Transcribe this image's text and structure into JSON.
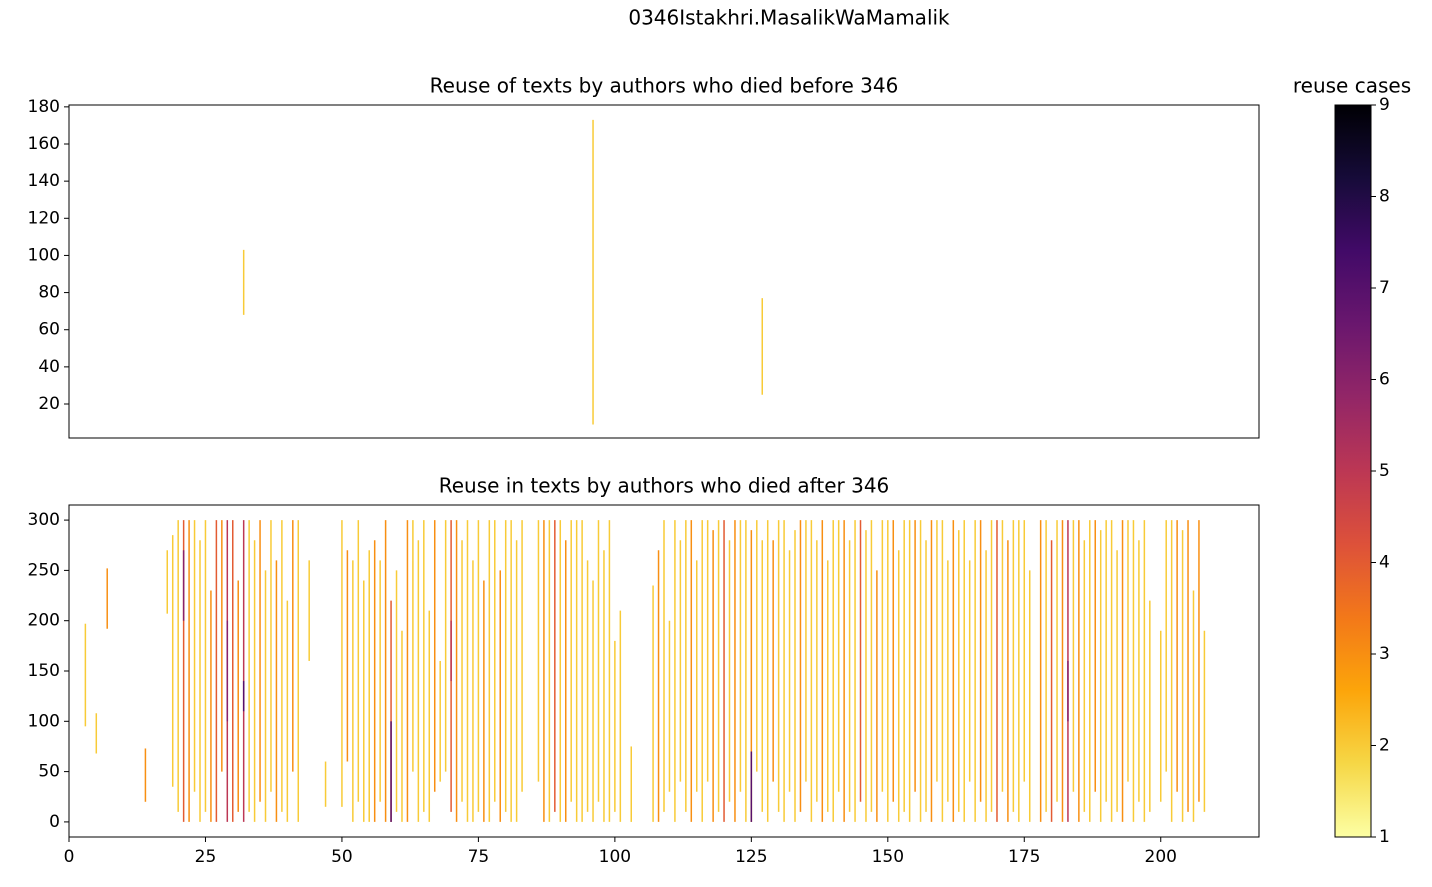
{
  "title": "0346Istakhri.MasalikWaMamalik",
  "chart_data": [
    {
      "type": "vlines",
      "title": "Reuse of texts by authors who died before 346",
      "x": [
        32,
        96,
        127
      ],
      "ymin": [
        68,
        9,
        25
      ],
      "ymax": [
        103,
        173,
        77
      ],
      "cases": [
        2,
        2,
        2
      ],
      "xlim": [
        0,
        218
      ],
      "ylim": [
        1.7,
        181
      ],
      "yticks": [
        20,
        40,
        60,
        80,
        100,
        120,
        140,
        160,
        180
      ]
    },
    {
      "type": "vlines",
      "title": "Reuse in texts by authors who died after 346",
      "x": [
        3,
        5,
        7,
        14,
        18,
        19,
        20,
        21,
        22,
        23,
        24,
        25,
        26,
        27,
        28,
        29,
        30,
        31,
        32,
        33,
        34,
        35,
        36,
        37,
        38,
        39,
        40,
        41,
        42,
        44,
        47,
        50,
        51,
        52,
        53,
        54,
        55,
        56,
        57,
        58,
        59,
        60,
        61,
        62,
        63,
        64,
        65,
        66,
        67,
        68,
        69,
        70,
        71,
        72,
        73,
        74,
        75,
        76,
        77,
        78,
        79,
        80,
        81,
        82,
        83,
        86,
        87,
        88,
        89,
        90,
        91,
        92,
        93,
        94,
        95,
        96,
        97,
        98,
        99,
        100,
        101,
        103,
        107,
        108,
        109,
        110,
        111,
        112,
        113,
        114,
        115,
        116,
        117,
        118,
        119,
        120,
        121,
        122,
        123,
        124,
        125,
        126,
        127,
        128,
        129,
        130,
        131,
        132,
        133,
        134,
        135,
        136,
        137,
        138,
        139,
        140,
        141,
        142,
        143,
        144,
        145,
        146,
        147,
        148,
        149,
        150,
        151,
        152,
        153,
        154,
        155,
        156,
        157,
        158,
        159,
        160,
        161,
        162,
        163,
        164,
        165,
        166,
        167,
        168,
        169,
        170,
        171,
        172,
        173,
        174,
        175,
        176,
        178,
        179,
        180,
        181,
        182,
        183,
        184,
        185,
        186,
        187,
        188,
        189,
        190,
        191,
        192,
        193,
        194,
        195,
        196,
        197,
        198,
        200,
        201,
        202,
        203,
        204,
        205,
        206,
        207,
        208,
        29,
        32,
        59,
        125,
        183,
        21,
        70
      ],
      "ymin": [
        95,
        68,
        192,
        20,
        207,
        35,
        10,
        0,
        0,
        30,
        0,
        10,
        0,
        0,
        50,
        0,
        0,
        10,
        0,
        10,
        0,
        20,
        0,
        30,
        0,
        10,
        0,
        50,
        0,
        160,
        15,
        15,
        60,
        0,
        20,
        0,
        0,
        0,
        20,
        0,
        0,
        10,
        0,
        0,
        50,
        0,
        10,
        0,
        30,
        40,
        50,
        10,
        0,
        20,
        0,
        0,
        10,
        0,
        0,
        20,
        0,
        10,
        0,
        0,
        30,
        40,
        0,
        0,
        10,
        0,
        0,
        20,
        0,
        0,
        10,
        0,
        20,
        0,
        0,
        10,
        0,
        0,
        0,
        0,
        10,
        30,
        0,
        40,
        10,
        0,
        30,
        0,
        40,
        0,
        10,
        0,
        20,
        0,
        30,
        0,
        0,
        50,
        10,
        0,
        40,
        10,
        0,
        30,
        0,
        10,
        40,
        0,
        20,
        0,
        10,
        0,
        30,
        0,
        10,
        0,
        20,
        0,
        10,
        0,
        30,
        0,
        20,
        0,
        10,
        0,
        30,
        0,
        10,
        0,
        40,
        0,
        20,
        0,
        10,
        0,
        40,
        0,
        20,
        0,
        10,
        0,
        30,
        0,
        10,
        0,
        40,
        0,
        0,
        10,
        0,
        20,
        0,
        0,
        30,
        0,
        10,
        0,
        30,
        0,
        20,
        0,
        10,
        0,
        40,
        0,
        20,
        0,
        10,
        20,
        50,
        0,
        30,
        0,
        10,
        0,
        20,
        10,
        100,
        110,
        0,
        0,
        100,
        200,
        140
      ],
      "ymax": [
        197,
        108,
        252,
        73,
        270,
        285,
        300,
        300,
        300,
        300,
        280,
        300,
        230,
        300,
        300,
        300,
        300,
        240,
        300,
        300,
        280,
        300,
        250,
        300,
        260,
        300,
        220,
        300,
        300,
        260,
        60,
        300,
        270,
        260,
        300,
        240,
        270,
        280,
        260,
        300,
        220,
        250,
        190,
        300,
        300,
        280,
        300,
        210,
        300,
        160,
        300,
        300,
        300,
        280,
        300,
        260,
        300,
        240,
        300,
        300,
        250,
        300,
        300,
        280,
        300,
        300,
        300,
        300,
        300,
        300,
        280,
        300,
        300,
        300,
        260,
        240,
        300,
        270,
        300,
        180,
        210,
        75,
        235,
        270,
        300,
        200,
        300,
        280,
        300,
        300,
        260,
        300,
        300,
        290,
        300,
        300,
        280,
        300,
        300,
        300,
        290,
        300,
        280,
        300,
        280,
        300,
        300,
        270,
        290,
        300,
        300,
        300,
        280,
        300,
        260,
        300,
        300,
        300,
        280,
        300,
        300,
        290,
        300,
        250,
        300,
        300,
        300,
        270,
        300,
        300,
        300,
        300,
        280,
        300,
        300,
        300,
        260,
        300,
        290,
        300,
        260,
        300,
        300,
        270,
        300,
        300,
        300,
        280,
        300,
        300,
        300,
        250,
        300,
        300,
        280,
        300,
        300,
        300,
        300,
        300,
        280,
        300,
        300,
        290,
        300,
        300,
        270,
        300,
        300,
        300,
        280,
        300,
        220,
        190,
        300,
        300,
        300,
        290,
        300,
        230,
        300,
        190,
        200,
        140,
        100,
        70,
        160,
        270,
        200
      ],
      "cases": [
        2,
        2,
        3,
        3,
        2,
        2,
        2,
        4,
        3,
        2,
        2,
        2,
        3,
        4,
        3,
        5,
        4,
        3,
        5,
        2,
        2,
        3,
        2,
        2,
        3,
        2,
        2,
        3,
        2,
        2,
        2,
        2,
        3,
        2,
        2,
        2,
        2,
        3,
        2,
        3,
        4,
        2,
        2,
        3,
        2,
        2,
        2,
        2,
        3,
        2,
        2,
        4,
        3,
        2,
        2,
        2,
        2,
        3,
        2,
        2,
        3,
        2,
        2,
        2,
        2,
        2,
        3,
        2,
        4,
        2,
        3,
        2,
        2,
        2,
        2,
        2,
        2,
        2,
        2,
        2,
        2,
        2,
        2,
        3,
        2,
        2,
        2,
        2,
        2,
        3,
        2,
        2,
        2,
        3,
        2,
        4,
        2,
        3,
        2,
        2,
        3,
        2,
        2,
        2,
        3,
        2,
        2,
        2,
        2,
        3,
        2,
        2,
        2,
        3,
        2,
        2,
        2,
        3,
        2,
        2,
        4,
        2,
        2,
        3,
        2,
        2,
        3,
        2,
        2,
        2,
        3,
        2,
        2,
        3,
        2,
        2,
        2,
        3,
        2,
        2,
        2,
        2,
        3,
        2,
        2,
        4,
        2,
        3,
        2,
        2,
        2,
        2,
        3,
        2,
        4,
        2,
        3,
        5,
        2,
        3,
        2,
        2,
        3,
        2,
        2,
        2,
        2,
        3,
        2,
        2,
        2,
        2,
        2,
        2,
        2,
        2,
        3,
        2,
        3,
        2,
        3,
        2,
        6,
        7,
        7,
        7,
        6,
        6,
        5
      ],
      "xlim": [
        0,
        218
      ],
      "ylim": [
        -15,
        315
      ],
      "yticks": [
        0,
        50,
        100,
        150,
        200,
        250,
        300
      ],
      "xticks": [
        0,
        25,
        50,
        75,
        100,
        125,
        150,
        175,
        200
      ]
    }
  ],
  "colorbar": {
    "label": "reuse cases",
    "lim": [
      1,
      9
    ],
    "ticks": [
      1,
      2,
      3,
      4,
      5,
      6,
      7,
      8,
      9
    ],
    "colors": [
      "#fcffa4",
      "#f6d746",
      "#fca50a",
      "#f37819",
      "#dd513a",
      "#bc3754",
      "#932667",
      "#6a176e",
      "#420a68",
      "#160b39",
      "#000004"
    ]
  }
}
